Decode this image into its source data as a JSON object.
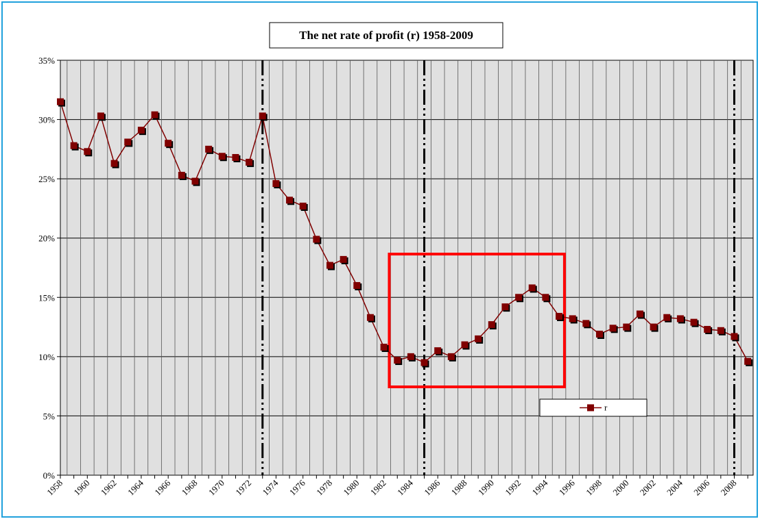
{
  "chart_data": {
    "type": "line",
    "title": "The net rate of profit (r) 1958-2009",
    "categories": [
      "1958",
      null,
      "1960",
      null,
      "1962",
      null,
      "1964",
      null,
      "1966",
      null,
      "1968",
      null,
      "1970",
      null,
      "1972",
      null,
      "1974",
      null,
      "1976",
      null,
      "1978",
      null,
      "1980",
      null,
      "1982",
      null,
      "1984",
      null,
      "1986",
      null,
      "1988",
      null,
      "1990",
      null,
      "1992",
      null,
      "1994",
      null,
      "1996",
      null,
      "1998",
      null,
      "2000",
      null,
      "2002",
      null,
      "2004",
      null,
      "2006",
      null,
      "2008",
      null
    ],
    "series": [
      {
        "name": "r",
        "color": "#800000",
        "values": [
          31.5,
          27.8,
          27.3,
          30.3,
          26.3,
          28.1,
          29.1,
          30.4,
          28.0,
          25.3,
          24.8,
          27.5,
          26.9,
          26.8,
          26.4,
          30.3,
          24.6,
          23.2,
          22.7,
          19.9,
          17.7,
          18.2,
          16.0,
          13.3,
          10.8,
          9.7,
          10.0,
          9.5,
          10.5,
          10.0,
          11.0,
          11.5,
          12.7,
          14.2,
          15.0,
          15.8,
          15.0,
          13.4,
          13.2,
          12.8,
          11.9,
          12.4,
          12.5,
          13.6,
          12.5,
          13.3,
          13.2,
          12.9,
          12.3,
          12.2,
          11.7,
          9.6
        ]
      }
    ],
    "ylim": [
      0,
      35
    ],
    "yticks": [
      {
        "value": 0,
        "label": "0%"
      },
      {
        "value": 5,
        "label": "5%"
      },
      {
        "value": 10,
        "label": "10%"
      },
      {
        "value": 15,
        "label": "15%"
      },
      {
        "value": 20,
        "label": "20%"
      },
      {
        "value": 25,
        "label": "25%"
      },
      {
        "value": 30,
        "label": "30%"
      },
      {
        "value": 35,
        "label": "35%"
      }
    ],
    "grid": true,
    "reference_lines": [
      15,
      27,
      50
    ],
    "highlight": {
      "x": [
        24.4,
        37.4
      ],
      "y": [
        7.45,
        18.65
      ],
      "color": "#ff0000"
    },
    "legend": "lower right"
  }
}
